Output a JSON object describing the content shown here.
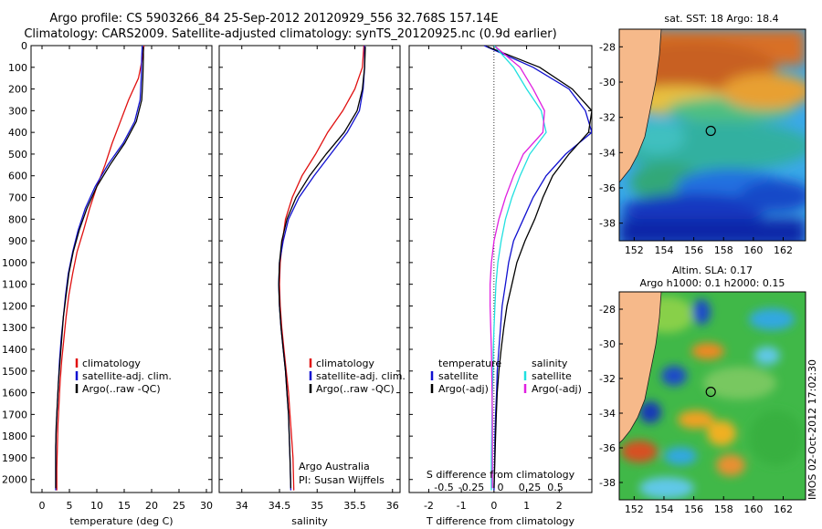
{
  "title_line1": "Argo profile: CS 5903266_84 25-Sep-2012 20120929_556 32.768S 157.14E",
  "title_line2": "Climatology: CARS2009. Satellite-adjusted climatology: synTS_20120925.nc (0.9d earlier)",
  "colors": {
    "climatology": "#e01010",
    "satellite": "#1010d0",
    "argo": "#000000",
    "satellite_s": "#20e0e0",
    "argo_s": "#e020e0",
    "land": "#f6b98a",
    "coast": "#202020"
  },
  "chart_data": [
    {
      "type": "line",
      "xlabel": "temperature (deg C)",
      "xlim": [
        -2,
        31
      ],
      "ylim": [
        2060,
        0
      ],
      "xticks": [
        0,
        5,
        10,
        15,
        20,
        25,
        30
      ],
      "yticks": [
        0,
        100,
        200,
        300,
        400,
        500,
        600,
        700,
        800,
        900,
        1000,
        1100,
        1200,
        1300,
        1400,
        1500,
        1600,
        1700,
        1800,
        1900,
        2000
      ],
      "legend": [
        "climatology",
        "satellite-adj. clim.",
        "Argo(..raw -QC)"
      ],
      "legend_placement": "lower-center",
      "series": [
        {
          "key": "climatology",
          "x": [
            18.6,
            18.4,
            17.6,
            15.8,
            14.3,
            12.8,
            11.5,
            10.0,
            8.7,
            7.6,
            6.4,
            5.6,
            4.9,
            4.4,
            4.0,
            3.6,
            3.3,
            3.1,
            2.9,
            2.8,
            2.7,
            2.7
          ],
          "y": [
            0,
            50,
            150,
            250,
            350,
            450,
            550,
            650,
            750,
            850,
            950,
            1050,
            1150,
            1250,
            1350,
            1450,
            1550,
            1650,
            1750,
            1850,
            1950,
            2050
          ]
        },
        {
          "key": "satellite",
          "x": [
            18.3,
            18.2,
            18.1,
            17.9,
            16.9,
            14.8,
            12.0,
            9.7,
            7.9,
            6.6,
            5.6,
            4.8,
            4.3,
            3.9,
            3.5,
            3.2,
            3.0,
            2.8,
            2.6,
            2.5,
            2.5
          ],
          "y": [
            0,
            50,
            150,
            250,
            350,
            450,
            550,
            650,
            750,
            850,
            950,
            1050,
            1150,
            1250,
            1350,
            1450,
            1550,
            1650,
            1750,
            1850,
            2050
          ]
        },
        {
          "key": "argo",
          "x": [
            18.5,
            18.5,
            18.4,
            18.2,
            17.2,
            15.1,
            12.4,
            10.0,
            8.2,
            6.8,
            5.7,
            4.9,
            4.4,
            3.9,
            3.6,
            3.3,
            3.0,
            2.8,
            2.6,
            2.5,
            2.5
          ],
          "y": [
            5,
            50,
            150,
            250,
            350,
            450,
            550,
            650,
            750,
            850,
            950,
            1050,
            1150,
            1250,
            1350,
            1450,
            1550,
            1650,
            1750,
            1850,
            2040
          ]
        }
      ]
    },
    {
      "type": "line",
      "xlabel": "salinity",
      "xlim": [
        33.7,
        36.1
      ],
      "ylim": [
        2060,
        0
      ],
      "xticks": [
        34,
        34.5,
        35,
        35.5,
        36
      ],
      "legend": [
        "climatology",
        "satellite-adj. clim.",
        "Argo(..raw -QC)"
      ],
      "legend_placement": "lower-right",
      "annotation": [
        "Argo Australia",
        "PI: Susan Wijffels"
      ],
      "series": [
        {
          "key": "climatology",
          "x": [
            35.62,
            35.6,
            35.5,
            35.34,
            35.14,
            34.98,
            34.8,
            34.67,
            34.58,
            34.54,
            34.51,
            34.5,
            34.51,
            34.53,
            34.56,
            34.59,
            34.62,
            34.64,
            34.66,
            34.68,
            34.69
          ],
          "y": [
            0,
            100,
            200,
            300,
            400,
            500,
            600,
            700,
            800,
            900,
            1000,
            1100,
            1200,
            1300,
            1400,
            1500,
            1600,
            1700,
            1800,
            1900,
            2050
          ]
        },
        {
          "key": "satellite",
          "x": [
            35.63,
            35.63,
            35.61,
            35.56,
            35.4,
            35.18,
            34.96,
            34.76,
            34.62,
            34.55,
            34.5,
            34.49,
            34.5,
            34.52,
            34.55,
            34.58,
            34.6,
            34.62,
            34.63,
            34.64,
            34.65
          ],
          "y": [
            0,
            100,
            200,
            300,
            400,
            500,
            600,
            700,
            800,
            900,
            1000,
            1100,
            1200,
            1300,
            1400,
            1500,
            1600,
            1700,
            1800,
            1900,
            2050
          ]
        },
        {
          "key": "argo",
          "x": [
            35.64,
            35.63,
            35.6,
            35.53,
            35.36,
            35.12,
            34.9,
            34.72,
            34.6,
            34.53,
            34.5,
            34.49,
            34.5,
            34.52,
            34.55,
            34.58,
            34.6,
            34.62,
            34.63,
            34.64,
            34.65
          ],
          "y": [
            5,
            100,
            200,
            300,
            400,
            500,
            600,
            700,
            800,
            900,
            1000,
            1100,
            1200,
            1300,
            1400,
            1500,
            1600,
            1700,
            1800,
            1900,
            2040
          ]
        }
      ]
    },
    {
      "type": "line",
      "xlabel": "T difference from climatology",
      "top_axis_label": "S difference from climatology",
      "xlim": [
        -2.6,
        3.0
      ],
      "ylim": [
        2060,
        0
      ],
      "xticks": [
        -2,
        -1,
        0,
        1,
        2
      ],
      "top_xticks": [
        "-0.5",
        "-0.25",
        "0",
        "0.25",
        "0.5"
      ],
      "legend_temperature": [
        "temperature",
        "satellite",
        "Argo(-adj)"
      ],
      "legend_salinity": [
        "salinity",
        "satellite",
        "Argo(-adj)"
      ],
      "legend_placement": "lower-center",
      "series": [
        {
          "key": "satellite",
          "x": [
            -0.3,
            1.2,
            2.3,
            2.8,
            3.0,
            2.2,
            1.6,
            1.2,
            0.9,
            0.6,
            0.45,
            0.35,
            0.25,
            0.2,
            0.15,
            0.1,
            0.08,
            0.05,
            0.03,
            0.02,
            0.0
          ],
          "y": [
            0,
            100,
            200,
            300,
            400,
            500,
            600,
            700,
            800,
            900,
            1000,
            1100,
            1200,
            1300,
            1400,
            1500,
            1600,
            1700,
            1800,
            1900,
            2050
          ]
        },
        {
          "key": "argo",
          "x": [
            -0.2,
            1.4,
            2.4,
            3.0,
            2.9,
            2.3,
            1.8,
            1.5,
            1.25,
            0.95,
            0.7,
            0.55,
            0.4,
            0.3,
            0.22,
            0.15,
            0.1,
            0.07,
            0.05,
            0.03,
            0.0
          ],
          "y": [
            5,
            100,
            200,
            300,
            400,
            500,
            600,
            700,
            800,
            900,
            1000,
            1100,
            1200,
            1300,
            1400,
            1500,
            1600,
            1700,
            1800,
            1900,
            2040
          ]
        },
        {
          "key": "satellite_s",
          "x": [
            0.0,
            0.6,
            1.0,
            1.45,
            1.6,
            1.1,
            0.8,
            0.55,
            0.35,
            0.22,
            0.12,
            0.06,
            0.03,
            0.0,
            -0.02,
            -0.03,
            -0.05,
            -0.06,
            -0.07,
            -0.08,
            -0.08
          ],
          "y": [
            0,
            100,
            200,
            300,
            400,
            500,
            600,
            700,
            800,
            900,
            1000,
            1100,
            1200,
            1300,
            1400,
            1500,
            1600,
            1700,
            1800,
            1900,
            2050
          ]
        },
        {
          "key": "argo_s",
          "x": [
            0.05,
            0.8,
            1.2,
            1.55,
            1.5,
            0.9,
            0.6,
            0.35,
            0.15,
            0.0,
            -0.08,
            -0.12,
            -0.12,
            -0.1,
            -0.08,
            -0.07,
            -0.06,
            -0.05,
            -0.05,
            -0.05,
            -0.05
          ],
          "y": [
            5,
            100,
            200,
            300,
            400,
            500,
            600,
            700,
            800,
            900,
            1000,
            1100,
            1200,
            1300,
            1400,
            1500,
            1600,
            1700,
            1800,
            1900,
            2040
          ]
        }
      ]
    },
    {
      "type": "heatmap",
      "title": "sat. SST: 18 Argo: 18.4",
      "xlim": [
        151,
        163.5
      ],
      "ylim": [
        -39,
        -27
      ],
      "xticks": [
        152,
        154,
        156,
        158,
        160,
        162
      ],
      "yticks": [
        -28,
        -30,
        -32,
        -34,
        -36,
        -38
      ],
      "argo_position": {
        "lon": 157.14,
        "lat": -32.768
      }
    },
    {
      "type": "heatmap",
      "title": "Altim. SLA: 0.17",
      "subtitle": "Argo h1000: 0.1 h2000: 0.15",
      "xlim": [
        151,
        163.5
      ],
      "ylim": [
        -39,
        -27
      ],
      "xticks": [
        152,
        154,
        156,
        158,
        160,
        162
      ],
      "yticks": [
        -28,
        -30,
        -32,
        -34,
        -36,
        -38
      ],
      "argo_position": {
        "lon": 157.14,
        "lat": -32.768
      }
    }
  ],
  "side_label": "IMOS 02-Oct-2012 17:02:30"
}
